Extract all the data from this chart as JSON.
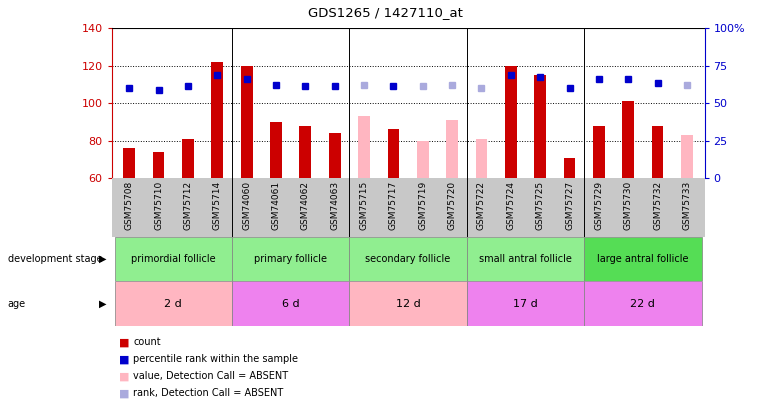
{
  "title": "GDS1265 / 1427110_at",
  "samples": [
    "GSM75708",
    "GSM75710",
    "GSM75712",
    "GSM75714",
    "GSM74060",
    "GSM74061",
    "GSM74062",
    "GSM74063",
    "GSM75715",
    "GSM75717",
    "GSM75719",
    "GSM75720",
    "GSM75722",
    "GSM75724",
    "GSM75725",
    "GSM75727",
    "GSM75729",
    "GSM75730",
    "GSM75732",
    "GSM75733"
  ],
  "count_values": [
    76,
    74,
    81,
    122,
    120,
    90,
    88,
    84,
    null,
    86,
    null,
    null,
    null,
    120,
    115,
    71,
    88,
    101,
    88,
    null
  ],
  "count_absent": [
    null,
    null,
    null,
    null,
    null,
    null,
    null,
    null,
    93,
    null,
    80,
    91,
    81,
    null,
    null,
    null,
    null,
    null,
    null,
    83
  ],
  "rank_present": [
    108,
    107,
    109,
    115,
    113,
    110,
    109,
    109,
    null,
    109,
    null,
    null,
    null,
    115,
    114,
    108,
    113,
    113,
    111,
    null
  ],
  "rank_absent": [
    null,
    null,
    null,
    null,
    null,
    null,
    null,
    null,
    110,
    null,
    109,
    110,
    108,
    null,
    null,
    null,
    null,
    null,
    null,
    110
  ],
  "groups": [
    {
      "label": "primordial follicle",
      "start": 0,
      "end": 4,
      "color": "#90ee90"
    },
    {
      "label": "primary follicle",
      "start": 4,
      "end": 8,
      "color": "#90ee90"
    },
    {
      "label": "secondary follicle",
      "start": 8,
      "end": 12,
      "color": "#90ee90"
    },
    {
      "label": "small antral follicle",
      "start": 12,
      "end": 16,
      "color": "#90ee90"
    },
    {
      "label": "large antral follicle",
      "start": 16,
      "end": 20,
      "color": "#55dd55"
    }
  ],
  "ages": [
    {
      "label": "2 d",
      "start": 0,
      "end": 4,
      "color": "#ffb6c1"
    },
    {
      "label": "6 d",
      "start": 4,
      "end": 8,
      "color": "#ee82ee"
    },
    {
      "label": "12 d",
      "start": 8,
      "end": 12,
      "color": "#ffb6c1"
    },
    {
      "label": "17 d",
      "start": 12,
      "end": 16,
      "color": "#ee82ee"
    },
    {
      "label": "22 d",
      "start": 16,
      "end": 20,
      "color": "#ee82ee"
    }
  ],
  "ylim_left": [
    60,
    140
  ],
  "ylim_right": [
    0,
    100
  ],
  "yticks_left": [
    60,
    80,
    100,
    120,
    140
  ],
  "yticks_right": [
    0,
    25,
    50,
    75,
    100
  ],
  "bar_width": 0.4,
  "color_count": "#cc0000",
  "color_count_absent": "#ffb6c1",
  "color_rank": "#0000cc",
  "color_rank_absent": "#aaaadd",
  "plot_bg": "#ffffff",
  "xbg_color": "#c8c8c8"
}
